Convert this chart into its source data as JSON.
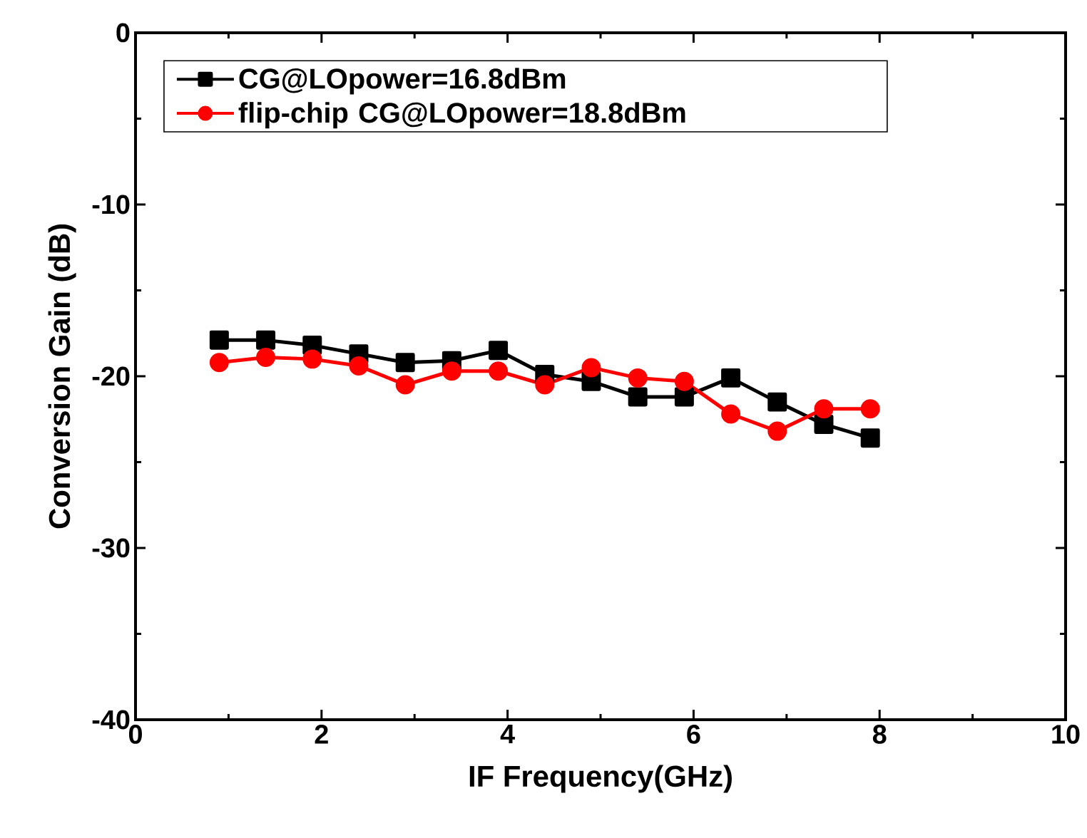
{
  "chart_data": {
    "type": "line",
    "xlabel": "IF Frequency(GHz)",
    "ylabel": "Conversion Gain (dB)",
    "x": [
      0.9,
      1.4,
      1.9,
      2.4,
      2.9,
      3.4,
      3.9,
      4.4,
      4.9,
      5.4,
      5.9,
      6.4,
      6.9,
      7.4,
      7.9
    ],
    "series": [
      {
        "name": "CG@LOpower=16.8dBm",
        "color": "#000000",
        "marker": "square",
        "values": [
          -17.9,
          -17.9,
          -18.2,
          -18.7,
          -19.2,
          -19.1,
          -18.5,
          -19.9,
          -20.3,
          -21.2,
          -21.2,
          -20.1,
          -21.5,
          -22.8,
          -23.6
        ]
      },
      {
        "name": "flip-chip CG@LOpower=18.8dBm",
        "color": "#ff0000",
        "marker": "circle",
        "values": [
          -19.2,
          -18.9,
          -19.0,
          -19.4,
          -20.5,
          -19.7,
          -19.7,
          -20.5,
          -19.5,
          -20.1,
          -20.3,
          -22.2,
          -23.2,
          -21.9,
          -21.9
        ]
      }
    ],
    "xlim": [
      0,
      10
    ],
    "ylim": [
      -40,
      0
    ],
    "xticks": [
      0,
      2,
      4,
      6,
      8,
      10
    ],
    "yticks": [
      -40,
      -30,
      -20,
      -10,
      0
    ],
    "grid": false,
    "legend": "top left",
    "line_style": "solid"
  }
}
